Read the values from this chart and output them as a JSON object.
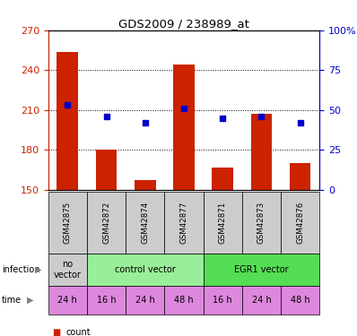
{
  "title": "GDS2009 / 238989_at",
  "samples": [
    "GSM42875",
    "GSM42872",
    "GSM42874",
    "GSM42877",
    "GSM42871",
    "GSM42873",
    "GSM42876"
  ],
  "counts": [
    254,
    180,
    157,
    244,
    167,
    207,
    170
  ],
  "percentiles": [
    53,
    46,
    42,
    51,
    45,
    46,
    42
  ],
  "ylim_left": [
    150,
    270
  ],
  "ylim_right": [
    0,
    100
  ],
  "yticks_left": [
    150,
    180,
    210,
    240,
    270
  ],
  "yticks_right": [
    0,
    25,
    50,
    75,
    100
  ],
  "ytick_labels_right": [
    "0",
    "25",
    "50",
    "75",
    "100%"
  ],
  "bar_color": "#cc2200",
  "dot_color": "#0000cc",
  "grid_color": "#888888",
  "infection_groups": [
    {
      "label": "no\nvector",
      "start": 0,
      "end": 1,
      "color": "#cccccc"
    },
    {
      "label": "control vector",
      "start": 1,
      "end": 4,
      "color": "#99ee99"
    },
    {
      "label": "EGR1 vector",
      "start": 4,
      "end": 7,
      "color": "#55dd55"
    }
  ],
  "time_labels": [
    "24 h",
    "16 h",
    "24 h",
    "48 h",
    "16 h",
    "24 h",
    "48 h"
  ],
  "time_color": "#dd88dd",
  "sample_bg_color": "#cccccc",
  "legend_count_color": "#cc2200",
  "legend_dot_color": "#0000cc",
  "bar_width": 0.55,
  "baseline": 150
}
